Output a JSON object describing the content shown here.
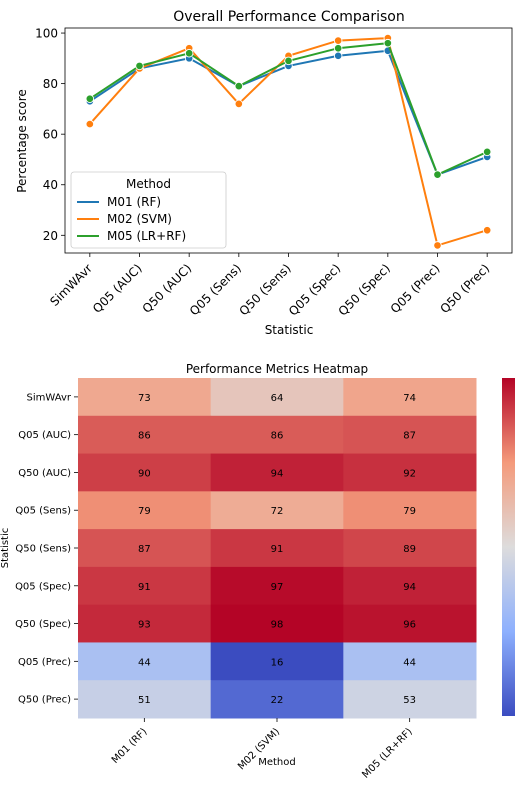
{
  "chart_data": [
    {
      "type": "line",
      "title": "Overall Performance Comparison",
      "xlabel": "Statistic",
      "ylabel": "Percentage score",
      "categories": [
        "SimWAvr",
        "Q05 (AUC)",
        "Q50 (AUC)",
        "Q05 (Sens)",
        "Q50 (Sens)",
        "Q05 (Spec)",
        "Q50 (Spec)",
        "Q05 (Prec)",
        "Q50 (Prec)"
      ],
      "ylim": [
        13,
        102
      ],
      "yticks": [
        20,
        40,
        60,
        80,
        100
      ],
      "grid": false,
      "legend": {
        "title": "Method",
        "placement": "lower-left"
      },
      "series": [
        {
          "name": "M01 (RF)",
          "color": "#1f77b4",
          "values": [
            73,
            86,
            90,
            79,
            87,
            91,
            93,
            44,
            51
          ]
        },
        {
          "name": "M02 (SVM)",
          "color": "#ff7f0e",
          "values": [
            64,
            86,
            94,
            72,
            91,
            97,
            98,
            16,
            22
          ]
        },
        {
          "name": "M05 (LR+RF)",
          "color": "#2ca02c",
          "values": [
            74,
            87,
            92,
            79,
            89,
            94,
            96,
            44,
            53
          ]
        }
      ]
    },
    {
      "type": "heatmap",
      "title": "Performance Metrics Heatmap",
      "xlabel": "Method",
      "ylabel": "Statistic",
      "colormap": "coolwarm",
      "value_range": [
        16,
        98
      ],
      "columns": [
        "M01 (RF)",
        "M02 (SVM)",
        "M05 (LR+RF)"
      ],
      "rows": [
        "SimWAvr",
        "Q05 (AUC)",
        "Q50 (AUC)",
        "Q05 (Sens)",
        "Q50 (Sens)",
        "Q05 (Spec)",
        "Q50 (Spec)",
        "Q05 (Prec)",
        "Q50 (Prec)"
      ],
      "values": [
        [
          73,
          64,
          74
        ],
        [
          86,
          86,
          87
        ],
        [
          90,
          94,
          92
        ],
        [
          79,
          72,
          79
        ],
        [
          87,
          91,
          89
        ],
        [
          91,
          97,
          94
        ],
        [
          93,
          98,
          96
        ],
        [
          44,
          16,
          44
        ],
        [
          51,
          22,
          53
        ]
      ]
    }
  ]
}
